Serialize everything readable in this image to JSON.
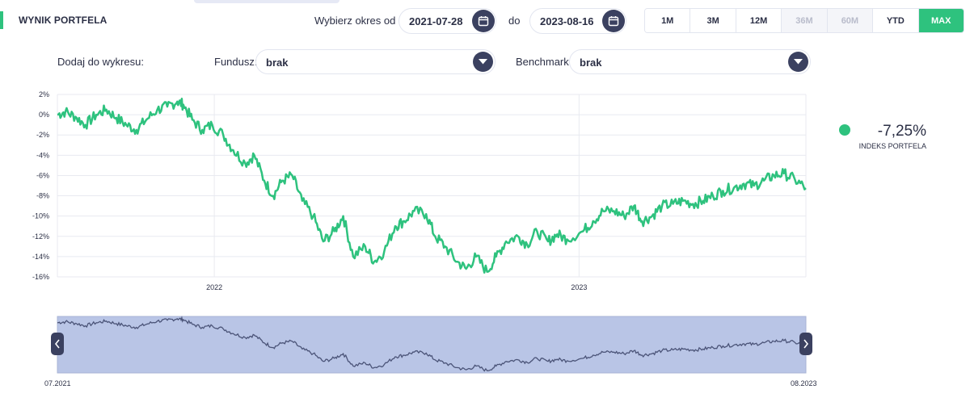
{
  "header": {
    "title": "WYNIK PORTFELA",
    "period_label": "Wybierz okres od",
    "date_from": "2021-07-28",
    "to_label": "do",
    "date_to": "2023-08-16",
    "ranges": [
      {
        "label": "1M",
        "state": "normal"
      },
      {
        "label": "3M",
        "state": "normal"
      },
      {
        "label": "12M",
        "state": "normal"
      },
      {
        "label": "36M",
        "state": "disabled"
      },
      {
        "label": "60M",
        "state": "disabled"
      },
      {
        "label": "YTD",
        "state": "normal"
      },
      {
        "label": "MAX",
        "state": "active"
      }
    ]
  },
  "filters": {
    "add_label": "Dodaj do wykresu:",
    "fund_label": "Fundusz:",
    "fund_value": "brak",
    "benchmark_label": "Benchmark:",
    "benchmark_value": "brak"
  },
  "legend": {
    "value": "-7,25%",
    "label": "INDEKS PORTFELA",
    "color": "#2ec27e"
  },
  "navigator": {
    "start_label": "07.2021",
    "end_label": "08.2023"
  },
  "chart_data": {
    "type": "line",
    "yticks": [
      "2%",
      "0%",
      "-2%",
      "-4%",
      "-6%",
      "-8%",
      "-10%",
      "-12%",
      "-14%",
      "-16%"
    ],
    "xticks": [
      "2022",
      "2023"
    ],
    "ylim": [
      -16,
      2
    ],
    "x_range": [
      "2021-07-28",
      "2023-08-16"
    ],
    "series": [
      {
        "name": "INDEKS PORTFELA",
        "color": "#2ec27e",
        "points": [
          [
            "2021-07-28",
            0.0
          ],
          [
            "2021-08-05",
            0.3
          ],
          [
            "2021-08-15",
            -0.2
          ],
          [
            "2021-08-25",
            -1.0
          ],
          [
            "2021-09-05",
            0.0
          ],
          [
            "2021-09-15",
            0.5
          ],
          [
            "2021-09-25",
            -0.3
          ],
          [
            "2021-10-05",
            -1.0
          ],
          [
            "2021-10-15",
            -1.5
          ],
          [
            "2021-10-25",
            -0.5
          ],
          [
            "2021-11-05",
            0.5
          ],
          [
            "2021-11-15",
            0.8
          ],
          [
            "2021-11-25",
            1.3
          ],
          [
            "2021-12-01",
            1.0
          ],
          [
            "2021-12-10",
            -0.5
          ],
          [
            "2021-12-20",
            -1.5
          ],
          [
            "2021-12-30",
            -1.0
          ],
          [
            "2022-01-10",
            -2.0
          ],
          [
            "2022-01-20",
            -3.5
          ],
          [
            "2022-02-01",
            -4.8
          ],
          [
            "2022-02-10",
            -4.0
          ],
          [
            "2022-02-20",
            -6.5
          ],
          [
            "2022-03-01",
            -8.0
          ],
          [
            "2022-03-10",
            -6.5
          ],
          [
            "2022-03-20",
            -6.0
          ],
          [
            "2022-03-30",
            -8.5
          ],
          [
            "2022-04-10",
            -10.0
          ],
          [
            "2022-04-20",
            -12.5
          ],
          [
            "2022-05-01",
            -11.5
          ],
          [
            "2022-05-10",
            -10.0
          ],
          [
            "2022-05-20",
            -14.0
          ],
          [
            "2022-06-01",
            -13.0
          ],
          [
            "2022-06-10",
            -14.5
          ],
          [
            "2022-06-20",
            -13.5
          ],
          [
            "2022-07-01",
            -11.0
          ],
          [
            "2022-07-10",
            -10.5
          ],
          [
            "2022-07-20",
            -9.5
          ],
          [
            "2022-08-01",
            -9.8
          ],
          [
            "2022-08-10",
            -12.0
          ],
          [
            "2022-08-20",
            -13.0
          ],
          [
            "2022-09-01",
            -14.5
          ],
          [
            "2022-09-10",
            -15.2
          ],
          [
            "2022-09-20",
            -14.0
          ],
          [
            "2022-10-01",
            -15.5
          ],
          [
            "2022-10-10",
            -14.0
          ],
          [
            "2022-10-20",
            -12.5
          ],
          [
            "2022-11-01",
            -12.0
          ],
          [
            "2022-11-10",
            -12.8
          ],
          [
            "2022-11-20",
            -11.5
          ],
          [
            "2022-12-01",
            -12.5
          ],
          [
            "2022-12-10",
            -11.8
          ],
          [
            "2022-12-20",
            -12.3
          ],
          [
            "2023-01-05",
            -11.5
          ],
          [
            "2023-01-15",
            -10.5
          ],
          [
            "2023-01-25",
            -9.5
          ],
          [
            "2023-02-05",
            -9.5
          ],
          [
            "2023-02-15",
            -10.0
          ],
          [
            "2023-02-25",
            -9.0
          ],
          [
            "2023-03-05",
            -10.5
          ],
          [
            "2023-03-15",
            -10.0
          ],
          [
            "2023-03-25",
            -9.0
          ],
          [
            "2023-04-05",
            -8.8
          ],
          [
            "2023-04-15",
            -8.5
          ],
          [
            "2023-04-25",
            -8.8
          ],
          [
            "2023-05-05",
            -8.5
          ],
          [
            "2023-05-15",
            -8.0
          ],
          [
            "2023-05-25",
            -7.5
          ],
          [
            "2023-06-05",
            -7.2
          ],
          [
            "2023-06-15",
            -6.8
          ],
          [
            "2023-06-25",
            -7.0
          ],
          [
            "2023-07-05",
            -6.5
          ],
          [
            "2023-07-15",
            -6.0
          ],
          [
            "2023-07-25",
            -5.8
          ],
          [
            "2023-08-05",
            -6.4
          ],
          [
            "2023-08-16",
            -7.25
          ]
        ]
      }
    ],
    "grid": true
  }
}
